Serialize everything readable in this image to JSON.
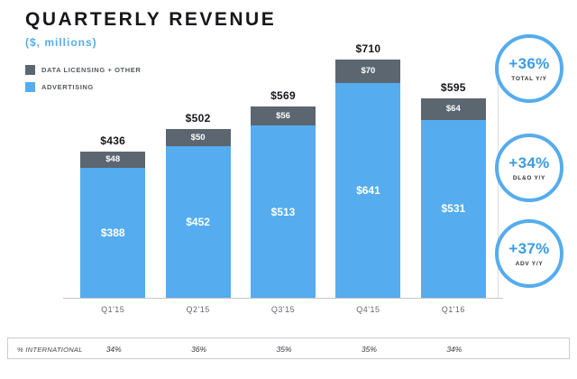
{
  "header": {
    "title": "QUARTERLY REVENUE",
    "subtitle": "($, millions)"
  },
  "legend": {
    "items": [
      {
        "label": "DATA LICENSING + OTHER",
        "color": "#5b6670"
      },
      {
        "label": "ADVERTISING",
        "color": "#55acee"
      }
    ]
  },
  "chart_data": {
    "type": "bar",
    "stacked": true,
    "title": "QUARTERLY REVENUE",
    "subtitle": "($, millions)",
    "categories": [
      "Q1'15",
      "Q2'15",
      "Q3'15",
      "Q4'15",
      "Q1'16"
    ],
    "series": [
      {
        "name": "ADVERTISING",
        "color": "#55acee",
        "values": [
          388,
          452,
          513,
          641,
          531
        ]
      },
      {
        "name": "DATA LICENSING + OTHER",
        "color": "#5b6670",
        "values": [
          48,
          50,
          56,
          70,
          64
        ]
      }
    ],
    "totals": [
      436,
      502,
      569,
      710,
      595
    ],
    "value_prefix": "$",
    "ylim": [
      0,
      710
    ],
    "grid": false,
    "legend_position": "top-left"
  },
  "badges": [
    {
      "value": "+36%",
      "label": "TOTAL Y/Y"
    },
    {
      "value": "+34%",
      "label": "DL&O Y/Y"
    },
    {
      "value": "+37%",
      "label": "ADV Y/Y"
    }
  ],
  "footer": {
    "label": "% INTERNATIONAL",
    "values": [
      "34%",
      "36%",
      "35%",
      "35%",
      "34%"
    ]
  },
  "colors": {
    "advertising": "#55acee",
    "data_licensing": "#5b6670",
    "accent": "#55acee"
  }
}
